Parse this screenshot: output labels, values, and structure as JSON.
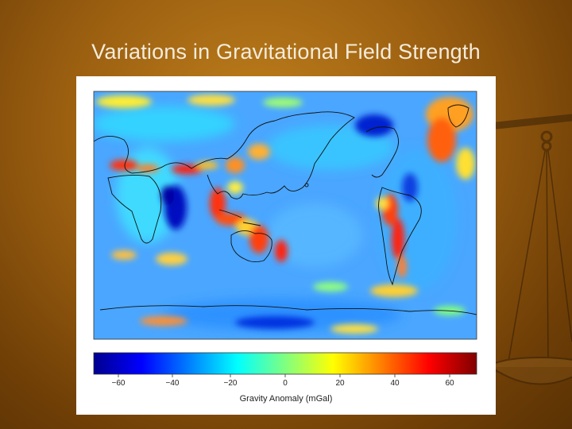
{
  "slide": {
    "title": "Variations in Gravitational Field Strength"
  },
  "colorbar": {
    "label": "Gravity Anomaly (mGal)",
    "ticks": [
      -60,
      -40,
      -20,
      0,
      20,
      40,
      60
    ],
    "tick_labels": [
      "−60",
      "−40",
      "−20",
      "0",
      "20",
      "40",
      "60"
    ],
    "range": [
      -70,
      70
    ],
    "colormap": [
      "#00008f",
      "#0000ff",
      "#0080ff",
      "#00ffff",
      "#80ff80",
      "#ffff00",
      "#ff8000",
      "#ff0000",
      "#800000"
    ]
  },
  "colors": {
    "background_dark": "#6e3e06",
    "background_light": "#c0801c",
    "title_text": "#f4ecdc",
    "map_base": "#4aa6ff"
  },
  "icons": {
    "decoration": "balance-scale-icon"
  }
}
